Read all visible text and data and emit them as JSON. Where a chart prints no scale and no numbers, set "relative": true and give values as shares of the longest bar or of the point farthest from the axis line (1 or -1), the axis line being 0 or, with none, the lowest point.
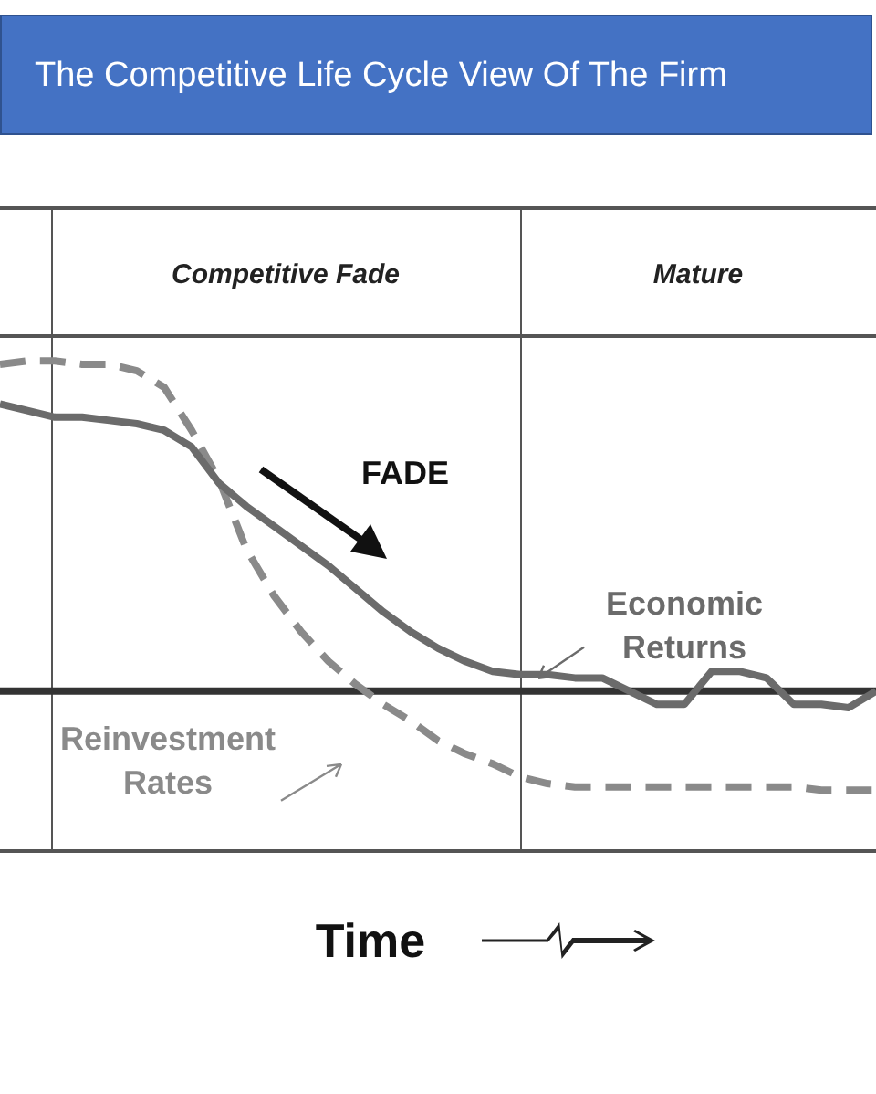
{
  "chart_data": {
    "type": "line",
    "title": "The Competitive Life Cycle View Of The Firm",
    "xlabel": "Time",
    "relative": true,
    "marker": "none",
    "categories": [
      null,
      null,
      null,
      null,
      null,
      null,
      null,
      null,
      null,
      null,
      null,
      null,
      null,
      null,
      null,
      null,
      null,
      null,
      null,
      null,
      null,
      null,
      null,
      null,
      null,
      null,
      null,
      null,
      null,
      null,
      null,
      null,
      null
    ],
    "series": [
      {
        "name": "Economic Returns",
        "color": "#6b6b6b",
        "line_style": "solid",
        "values": [
          0.87,
          0.85,
          0.83,
          0.83,
          0.82,
          0.81,
          0.79,
          0.74,
          0.63,
          0.56,
          0.5,
          0.44,
          0.38,
          0.31,
          0.24,
          0.18,
          0.13,
          0.09,
          0.06,
          0.05,
          0.05,
          0.04,
          0.04,
          0,
          -0.04,
          -0.04,
          0.06,
          0.06,
          0.04,
          -0.04,
          -0.04,
          -0.05,
          0
        ]
      },
      {
        "name": "Reinvestment Rates",
        "color": "#8a8a8a",
        "line_style": "dashed",
        "values": [
          0.99,
          1,
          1,
          0.99,
          0.99,
          0.97,
          0.92,
          0.79,
          0.64,
          0.43,
          0.29,
          0.18,
          0.09,
          0.02,
          -0.04,
          -0.09,
          -0.15,
          -0.19,
          -0.22,
          -0.26,
          -0.28,
          -0.29,
          -0.29,
          -0.29,
          -0.29,
          -0.29,
          -0.29,
          -0.29,
          -0.29,
          -0.29,
          -0.3,
          -0.3,
          -0.3
        ]
      }
    ],
    "annotations": [
      "Competitive Fade",
      "Mature",
      "FADE"
    ]
  }
}
